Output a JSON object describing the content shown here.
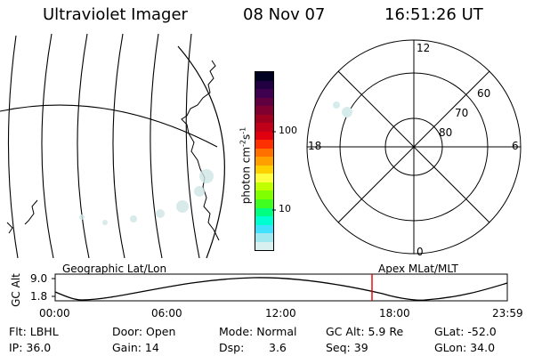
{
  "header": {
    "instrument": "Ultraviolet Imager",
    "date": "08 Nov 07",
    "time": "16:51:26 UT"
  },
  "colorbar": {
    "unit_text": "photon cm",
    "unit_exp1": "-2",
    "unit_mid": "s",
    "unit_exp2": "-1",
    "tick_100": "100",
    "tick_10": "10",
    "colors": [
      "#000020",
      "#200040",
      "#400050",
      "#600040",
      "#800030",
      "#a00020",
      "#c00018",
      "#e00010",
      "#ff3000",
      "#ff7000",
      "#ffa000",
      "#ffd000",
      "#ffff40",
      "#c0ff00",
      "#80ff00",
      "#40ff20",
      "#00ff80",
      "#00ffd0",
      "#40e0ff",
      "#a0e8f0",
      "#d8f0f0"
    ]
  },
  "polar": {
    "mlt_top": "12",
    "mlt_left": "18",
    "mlt_right": "6",
    "mlt_bottom": "0",
    "lat_60": "60",
    "lat_70": "70",
    "lat_80": "80"
  },
  "timeline": {
    "left_title": "Geographic Lat/Lon",
    "right_title": "Apex MLat/MLT",
    "y_axis_label": "GC Alt",
    "y_max": "9.0",
    "y_min": "1.8",
    "times": [
      "00:00",
      "06:00",
      "12:00",
      "18:00",
      "23:59"
    ],
    "marker_color": "#e00000"
  },
  "info": {
    "filter": "Flt: LBHL",
    "ip": "IP: 36.0",
    "door": "Door: Open",
    "gain": "Gain: 14",
    "mode": "Mode: Normal",
    "dsp_label": "Dsp:",
    "dsp_value": "3.6",
    "gc_alt": "GC Alt: 5.9 Re",
    "seq": "Seq: 39",
    "glat": "GLat: -52.0",
    "glon": "GLon: 34.0"
  }
}
